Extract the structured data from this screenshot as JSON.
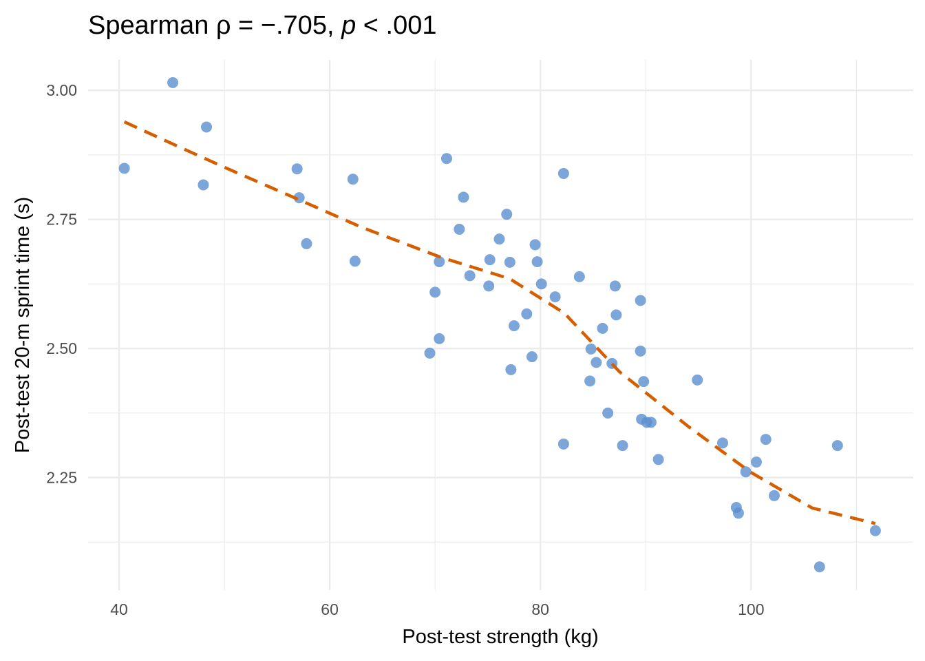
{
  "chart_data": {
    "type": "scatter",
    "title_parts": {
      "prefix": "Spearman ρ = −.705, ",
      "p": "p",
      "suffix": " < .001"
    },
    "xlabel": "Post-test strength (kg)",
    "ylabel": "Post-test 20-m sprint time (s)",
    "xlim": [
      37.06,
      115.4
    ],
    "ylim": [
      2.032,
      3.059
    ],
    "x_ticks": [
      40,
      60,
      80,
      100
    ],
    "x_tick_labels": [
      "40",
      "60",
      "80",
      "100"
    ],
    "x_minor": [
      50,
      70,
      90,
      110
    ],
    "y_ticks": [
      2.25,
      2.5,
      2.75,
      3.0
    ],
    "y_tick_labels": [
      "2.25",
      "2.50",
      "2.75",
      "3.00"
    ],
    "y_minor": [
      2.125,
      2.375,
      2.625,
      2.875
    ],
    "grid": true,
    "colors": {
      "points": "#5b8fd0",
      "trend": "#d55e00",
      "grid": "#ebebeb"
    },
    "points": [
      [
        40.5,
        2.849
      ],
      [
        45.1,
        3.015
      ],
      [
        48.3,
        2.929
      ],
      [
        48.0,
        2.817
      ],
      [
        56.9,
        2.848
      ],
      [
        57.1,
        2.792
      ],
      [
        57.8,
        2.703
      ],
      [
        62.2,
        2.828
      ],
      [
        62.4,
        2.669
      ],
      [
        71.1,
        2.868
      ],
      [
        72.7,
        2.793
      ],
      [
        72.3,
        2.731
      ],
      [
        70.4,
        2.668
      ],
      [
        73.3,
        2.641
      ],
      [
        70.0,
        2.609
      ],
      [
        70.4,
        2.519
      ],
      [
        69.5,
        2.491
      ],
      [
        76.8,
        2.76
      ],
      [
        76.1,
        2.712
      ],
      [
        75.2,
        2.672
      ],
      [
        77.1,
        2.667
      ],
      [
        75.1,
        2.621
      ],
      [
        79.5,
        2.701
      ],
      [
        79.7,
        2.668
      ],
      [
        80.1,
        2.625
      ],
      [
        81.4,
        2.6
      ],
      [
        78.7,
        2.567
      ],
      [
        77.5,
        2.544
      ],
      [
        79.2,
        2.484
      ],
      [
        77.2,
        2.459
      ],
      [
        82.2,
        2.839
      ],
      [
        83.7,
        2.639
      ],
      [
        87.1,
        2.621
      ],
      [
        89.5,
        2.593
      ],
      [
        87.2,
        2.565
      ],
      [
        85.9,
        2.539
      ],
      [
        84.8,
        2.499
      ],
      [
        85.3,
        2.473
      ],
      [
        86.8,
        2.471
      ],
      [
        89.5,
        2.495
      ],
      [
        84.7,
        2.437
      ],
      [
        89.8,
        2.436
      ],
      [
        94.9,
        2.439
      ],
      [
        86.4,
        2.375
      ],
      [
        89.6,
        2.363
      ],
      [
        90.1,
        2.357
      ],
      [
        90.5,
        2.357
      ],
      [
        82.2,
        2.315
      ],
      [
        87.8,
        2.312
      ],
      [
        91.2,
        2.285
      ],
      [
        97.3,
        2.317
      ],
      [
        101.4,
        2.324
      ],
      [
        100.5,
        2.28
      ],
      [
        99.5,
        2.261
      ],
      [
        108.2,
        2.312
      ],
      [
        102.2,
        2.215
      ],
      [
        98.6,
        2.192
      ],
      [
        98.8,
        2.181
      ],
      [
        111.8,
        2.147
      ],
      [
        106.5,
        2.077
      ]
    ],
    "trend_line": {
      "style": "dashed",
      "x": [
        40.5,
        45,
        50,
        57.1,
        63,
        70.5,
        77.1,
        82.3,
        87.5,
        94.1,
        99.9,
        105.8,
        111.8
      ],
      "y": [
        2.939,
        2.897,
        2.851,
        2.788,
        2.735,
        2.677,
        2.635,
        2.568,
        2.455,
        2.348,
        2.261,
        2.191,
        2.161
      ]
    }
  }
}
